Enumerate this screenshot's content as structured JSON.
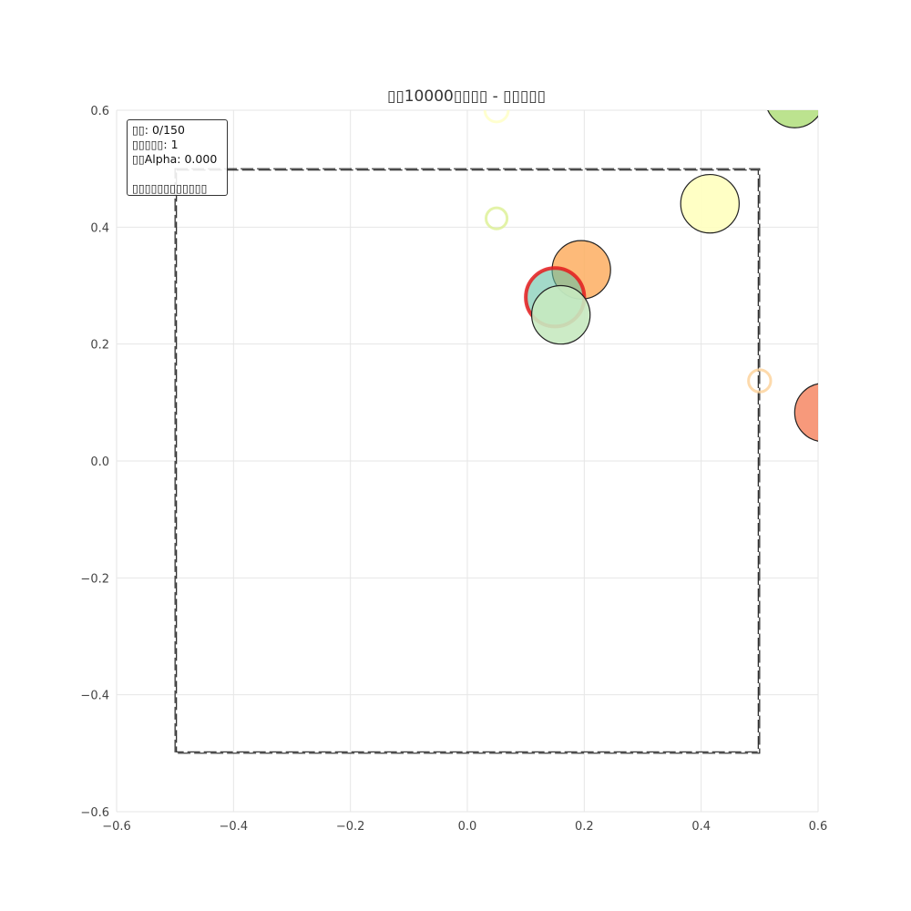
{
  "chart_data": {
    "type": "scatter",
    "title": "▯▯10000▯▯▯▯ - ▯▯▯▯▯",
    "xlabel": "",
    "ylabel": "",
    "xlim": [
      -0.6,
      0.6
    ],
    "ylim": [
      -0.6,
      0.6
    ],
    "x_ticks": [
      -0.6,
      -0.4,
      -0.2,
      0.0,
      0.2,
      0.4,
      0.6
    ],
    "y_ticks": [
      -0.6,
      -0.4,
      -0.2,
      0.0,
      0.2,
      0.4,
      0.6
    ],
    "x_tick_labels": [
      "−0.6",
      "−0.4",
      "−0.2",
      "0.0",
      "0.2",
      "0.4",
      "0.6"
    ],
    "y_tick_labels": [
      "−0.6",
      "−0.4",
      "−0.2",
      "0.0",
      "0.2",
      "0.4",
      "0.6"
    ],
    "grid": true,
    "boundary_box": {
      "x": [
        -0.5,
        0.5
      ],
      "y": [
        -0.5,
        0.5
      ],
      "style": "dashed"
    },
    "points": [
      {
        "x": 0.05,
        "y": 0.6,
        "r": 0.02,
        "color": "#ffffbf",
        "style": "ring",
        "alpha": 0.75
      },
      {
        "x": 0.05,
        "y": 0.415,
        "r": 0.018,
        "color": "#d9ef8b",
        "style": "ring",
        "alpha": 0.75
      },
      {
        "x": 0.5,
        "y": 0.137,
        "r": 0.019,
        "color": "#fdd49e",
        "style": "ring",
        "alpha": 0.85
      },
      {
        "x": 0.56,
        "y": 0.62,
        "r": 0.05,
        "color": "#a6d96a",
        "style": "filled",
        "alpha": 0.75
      },
      {
        "x": 0.415,
        "y": 0.44,
        "r": 0.05,
        "color": "#ffffbf",
        "style": "filled",
        "alpha": 0.9
      },
      {
        "x": 0.195,
        "y": 0.327,
        "r": 0.05,
        "color": "#fdae61",
        "style": "filled",
        "alpha": 0.85
      },
      {
        "x": 0.15,
        "y": 0.28,
        "r": 0.05,
        "color": "#66c2a5",
        "style": "highlighted",
        "alpha": 0.6
      },
      {
        "x": 0.16,
        "y": 0.25,
        "r": 0.05,
        "color": "#c7e9c0",
        "style": "filled",
        "alpha": 0.9
      },
      {
        "x": 0.61,
        "y": 0.083,
        "r": 0.05,
        "color": "#f46d43",
        "style": "filled",
        "alpha": 0.7
      }
    ],
    "colors": {
      "grid": "#e6e6e6",
      "edge": "#222222",
      "highlight_edge": "#e41a1c",
      "boundary": "#222222"
    }
  },
  "info": {
    "line1": "▯▯: 0/150",
    "line2": "▯▯▯▯▯: 1",
    "line3": "▯▯Alpha: 0.000",
    "line4": "▯▯▯▯▯▯▯▯▯▯▯▯"
  }
}
